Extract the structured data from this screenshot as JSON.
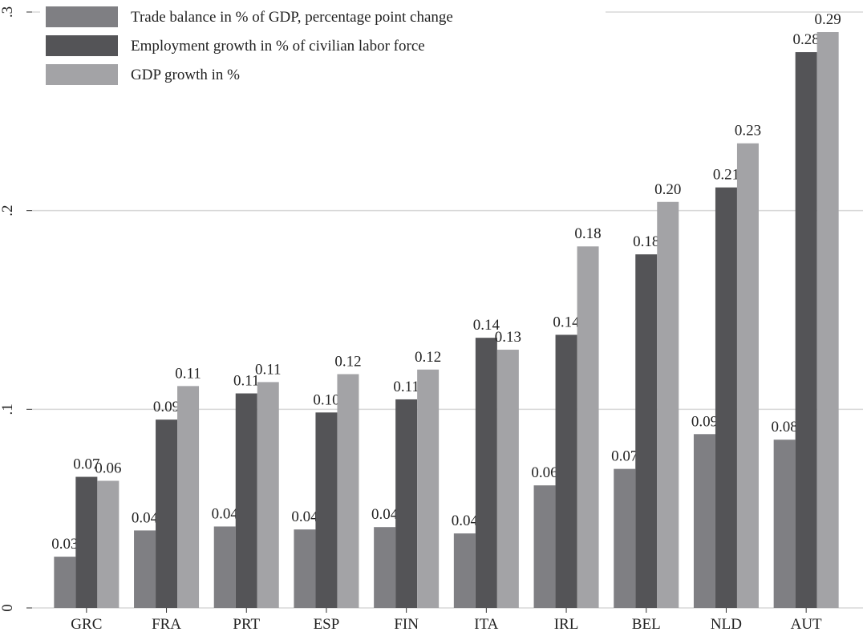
{
  "chart_data": {
    "type": "bar",
    "categories": [
      "GRC",
      "FRA",
      "PRT",
      "ESP",
      "FIN",
      "ITA",
      "IRL",
      "BEL",
      "NLD",
      "AUT"
    ],
    "series": [
      {
        "name": "Trade balance in % of GDP, percentage point change",
        "color": "#7f7f83",
        "values": [
          0.0258,
          0.039,
          0.041,
          0.0395,
          0.0407,
          0.0375,
          0.0617,
          0.07,
          0.0875,
          0.0847
        ],
        "value_labels": [
          "0.03",
          "0.04",
          "0.04",
          "0.04",
          "0.04",
          "0.04",
          "0.06",
          "0.07",
          "0.09",
          "0.08"
        ]
      },
      {
        "name": "Employment growth in % of civilian labor force",
        "color": "#545457",
        "values": [
          0.066,
          0.0948,
          0.108,
          0.0984,
          0.105,
          0.136,
          0.1375,
          0.178,
          0.2117,
          0.2798
        ],
        "value_labels": [
          "0.07",
          "0.09",
          "0.11",
          "0.10",
          "0.11",
          "0.14",
          "0.14",
          "0.18",
          "0.21",
          "0.28"
        ]
      },
      {
        "name": "GDP growth in %",
        "color": "#a3a3a6",
        "values": [
          0.064,
          0.1117,
          0.1137,
          0.1177,
          0.12,
          0.13,
          0.182,
          0.2044,
          0.2339,
          0.2899
        ],
        "value_labels": [
          "0.06",
          "0.11",
          "0.11",
          "0.12",
          "0.12",
          "0.13",
          "0.18",
          "0.20",
          "0.23",
          "0.29"
        ]
      }
    ],
    "ylim": [
      0,
      0.3
    ],
    "yticks": [
      0,
      {
        "value": 0.1,
        "label": ".1"
      },
      {
        "value": 0.2,
        "label": ".2"
      },
      {
        "value": 0.3,
        "label": ".3"
      }
    ],
    "grid": true,
    "legend": "top-left"
  }
}
